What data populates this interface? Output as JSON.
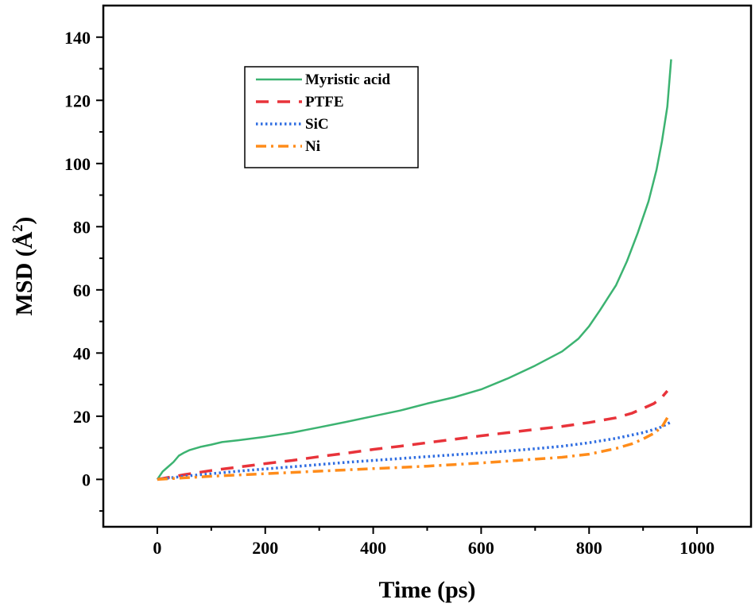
{
  "chart_data": {
    "type": "line",
    "title": "",
    "xlabel": "Time (ps)",
    "ylabel_main": "MSD (",
    "ylabel_unit": "Å",
    "ylabel_sup": "2",
    "ylabel_close": ")",
    "xlim": [
      -100,
      1100
    ],
    "ylim": [
      -15,
      150
    ],
    "xticks": [
      0,
      200,
      400,
      600,
      800,
      1000
    ],
    "xtick_labels": [
      "0",
      "200",
      "400",
      "600",
      "800",
      "1000"
    ],
    "yticks": [
      0,
      20,
      40,
      60,
      80,
      100,
      120,
      140
    ],
    "ytick_labels": [
      "0",
      "20",
      "40",
      "60",
      "80",
      "100",
      "120",
      "140"
    ],
    "grid": false,
    "legend_position": "top-left",
    "series": [
      {
        "name": "Myristic acid",
        "color": "#3cb371",
        "style": "solid",
        "x": [
          0,
          10,
          20,
          30,
          40,
          50,
          60,
          80,
          100,
          120,
          150,
          200,
          250,
          300,
          350,
          400,
          450,
          500,
          550,
          600,
          650,
          700,
          750,
          780,
          800,
          820,
          850,
          870,
          890,
          910,
          925,
          935,
          945,
          952
        ],
        "y": [
          0,
          2.5,
          4,
          5.5,
          7.5,
          8.5,
          9.3,
          10.3,
          11,
          11.8,
          12.4,
          13.5,
          14.8,
          16.5,
          18.2,
          20,
          21.8,
          24,
          26,
          28.5,
          32,
          36,
          40.5,
          44.5,
          48.5,
          53.5,
          61.5,
          69,
          78,
          88,
          98,
          107,
          118,
          133
        ]
      },
      {
        "name": "PTFE",
        "color": "#e8333a",
        "style": "dashed",
        "x": [
          0,
          50,
          100,
          150,
          200,
          250,
          300,
          350,
          400,
          450,
          500,
          550,
          600,
          650,
          700,
          750,
          800,
          850,
          880,
          900,
          920,
          935,
          945
        ],
        "y": [
          0,
          1.5,
          2.8,
          3.9,
          5,
          6,
          7.2,
          8.3,
          9.5,
          10.5,
          11.6,
          12.7,
          13.8,
          14.8,
          15.8,
          16.8,
          18,
          19.5,
          21,
          22.5,
          24,
          26,
          28
        ]
      },
      {
        "name": "SiC",
        "color": "#2f6de1",
        "style": "dotted",
        "x": [
          0,
          50,
          100,
          150,
          200,
          250,
          300,
          350,
          400,
          450,
          500,
          550,
          600,
          650,
          700,
          750,
          800,
          850,
          900,
          930,
          950
        ],
        "y": [
          0,
          1,
          1.8,
          2.6,
          3.3,
          4,
          4.7,
          5.4,
          6,
          6.6,
          7.2,
          7.8,
          8.4,
          9,
          9.7,
          10.5,
          11.6,
          13,
          14.8,
          16.3,
          18
        ]
      },
      {
        "name": "Ni",
        "color": "#ff8c1a",
        "style": "dashdot",
        "x": [
          0,
          50,
          100,
          150,
          200,
          250,
          300,
          350,
          400,
          450,
          500,
          550,
          600,
          650,
          700,
          750,
          800,
          850,
          880,
          900,
          920,
          935,
          945
        ],
        "y": [
          0,
          0.5,
          1,
          1.4,
          1.8,
          2.2,
          2.6,
          3,
          3.4,
          3.8,
          4.2,
          4.7,
          5.2,
          5.8,
          6.4,
          7,
          8,
          9.8,
          11.3,
          12.8,
          14.6,
          16.6,
          19.5
        ]
      }
    ]
  }
}
